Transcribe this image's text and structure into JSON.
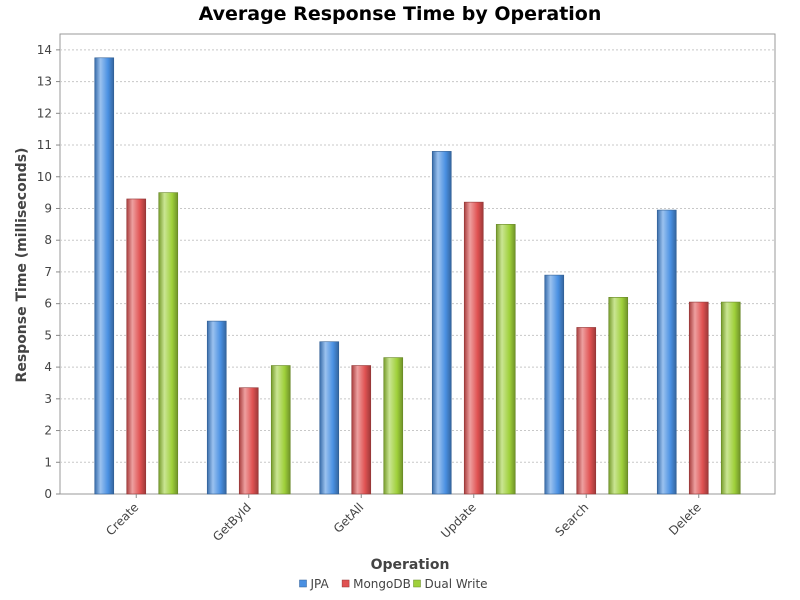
{
  "chart_data": {
    "type": "bar",
    "title": "Average Response Time by Operation",
    "xlabel": "Operation",
    "ylabel": "Response Time (milliseconds)",
    "categories": [
      "Create",
      "GetById",
      "GetAll",
      "Update",
      "Search",
      "Delete"
    ],
    "series": [
      {
        "name": "JPA",
        "color": "#4a90e2",
        "values": [
          13.75,
          5.45,
          4.8,
          10.8,
          6.9,
          8.95
        ]
      },
      {
        "name": "MongoDB",
        "color": "#e05252",
        "values": [
          9.3,
          3.35,
          4.05,
          9.2,
          5.25,
          6.05
        ]
      },
      {
        "name": "Dual Write",
        "color": "#9fd03a",
        "values": [
          9.5,
          4.05,
          4.3,
          8.5,
          6.2,
          6.05
        ]
      }
    ],
    "ylim": [
      0,
      14.5
    ],
    "yticks": [
      0,
      1,
      2,
      3,
      4,
      5,
      6,
      7,
      8,
      9,
      10,
      11,
      12,
      13,
      14
    ],
    "grid": true,
    "legend_position": "bottom"
  }
}
